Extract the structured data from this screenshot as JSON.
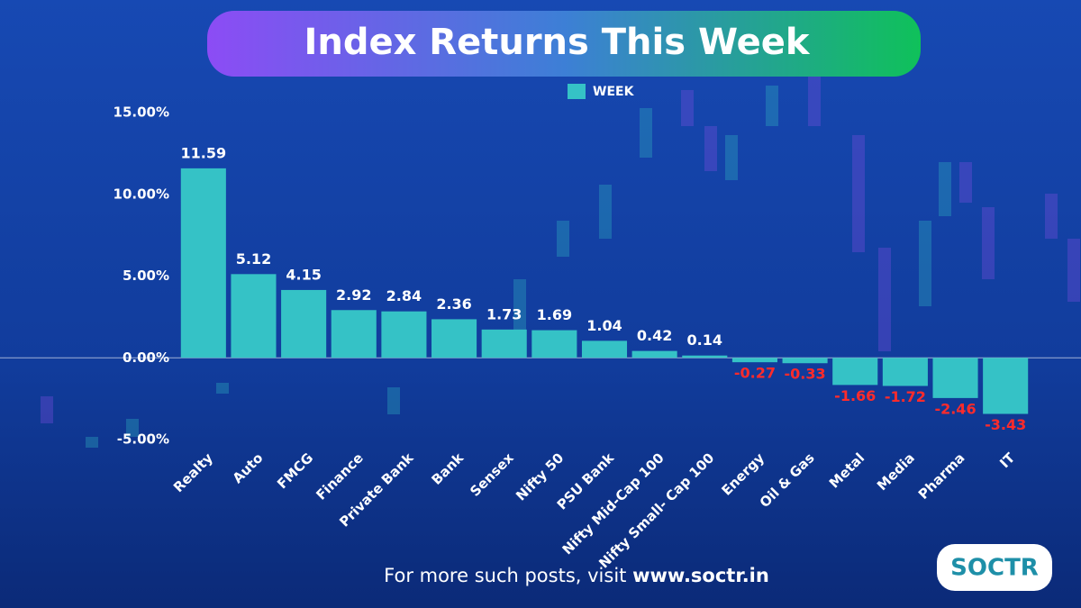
{
  "chart_data": {
    "type": "bar",
    "title": "Index  Returns This Week",
    "categories": [
      "Realty",
      "Auto",
      "FMCG",
      "Finance",
      "Private Bank",
      "Bank",
      "Sensex",
      "Nifty 50",
      "PSU Bank",
      "Nifty Mid-Cap 100",
      "Nifty Small- Cap 100",
      "Energy",
      "Oil & Gas",
      "Metal",
      "Media",
      "Pharma",
      "IT"
    ],
    "series": [
      {
        "name": "WEEK",
        "color": "#35c2c6",
        "values": [
          11.59,
          5.12,
          4.15,
          2.92,
          2.84,
          2.36,
          1.73,
          1.69,
          1.04,
          0.42,
          0.14,
          -0.27,
          -0.33,
          -1.66,
          -1.72,
          -2.46,
          -3.43
        ]
      }
    ],
    "ylim": [
      -5,
      15
    ],
    "yticks": [
      {
        "value": -5,
        "label": "-5.00%"
      },
      {
        "value": 0,
        "label": "0.00%"
      },
      {
        "value": 5,
        "label": "5.00%"
      },
      {
        "value": 10,
        "label": "10.00%"
      },
      {
        "value": 15,
        "label": "15.00%"
      }
    ],
    "grid": false,
    "legend": "top",
    "positive_label_color": "#ffffff",
    "negative_label_color": "#ff2b2b"
  },
  "footer": {
    "prefix": "For more such posts, visit",
    "link": "www.soctr.in"
  },
  "logo": "SOCTR"
}
